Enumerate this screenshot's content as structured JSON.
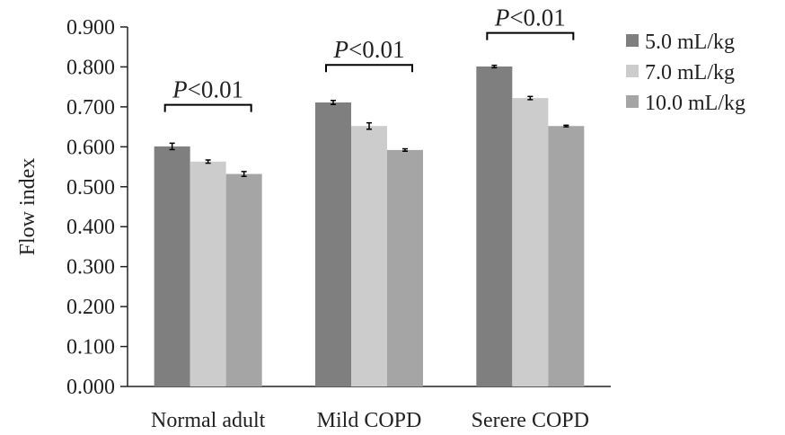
{
  "chart_data": {
    "type": "bar",
    "title": "",
    "xlabel": "",
    "ylabel": "Flow index",
    "ylim": [
      0,
      0.9
    ],
    "yticks": [
      "0.000",
      "0.100",
      "0.200",
      "0.300",
      "0.400",
      "0.500",
      "0.600",
      "0.700",
      "0.800",
      "0.900"
    ],
    "grid": false,
    "legend_position": "top-right",
    "categories": [
      "Normal adult",
      "Mild COPD",
      "Serere COPD"
    ],
    "series": [
      {
        "name": "5.0 mL/kg",
        "color": "#7f7f7f",
        "values": [
          0.601,
          0.711,
          0.801
        ],
        "errors": [
          0.008,
          0.005,
          0.003
        ]
      },
      {
        "name": "7.0 mL/kg",
        "color": "#cccccc",
        "values": [
          0.563,
          0.652,
          0.722
        ],
        "errors": [
          0.004,
          0.008,
          0.004
        ]
      },
      {
        "name": "10.0 mL/kg",
        "color": "#a5a5a5",
        "values": [
          0.532,
          0.592,
          0.652
        ],
        "errors": [
          0.006,
          0.003,
          0.002
        ]
      }
    ],
    "annotations": [
      {
        "category": "Normal adult",
        "p_symbol": "P",
        "p_rest": "<0.01",
        "y": 0.705
      },
      {
        "category": "Mild COPD",
        "p_symbol": "P",
        "p_rest": "<0.01",
        "y": 0.805
      },
      {
        "category": "Serere COPD",
        "p_symbol": "P",
        "p_rest": "<0.01",
        "y": 0.885
      }
    ]
  }
}
